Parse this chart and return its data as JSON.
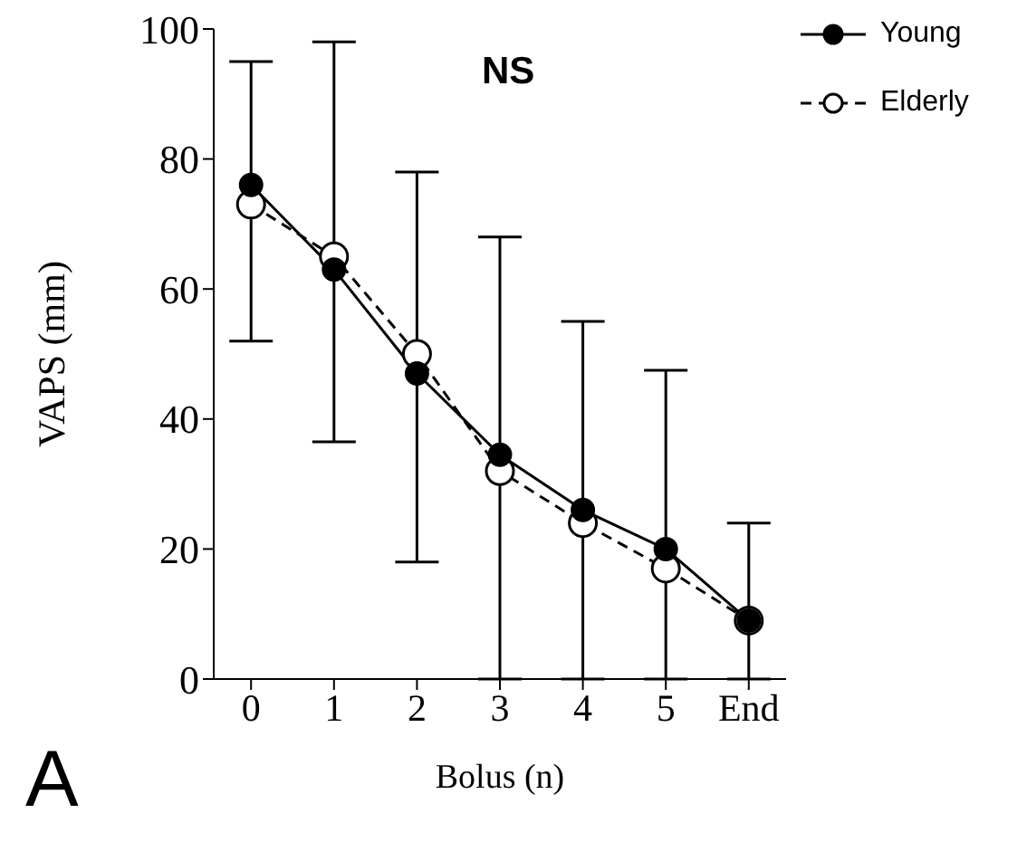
{
  "chart_data": {
    "type": "line",
    "xlabel": "Bolus (n)",
    "ylabel": "VAPS (mm)",
    "categories": [
      "0",
      "1",
      "2",
      "3",
      "4",
      "5",
      "End"
    ],
    "series": [
      {
        "name": "Young",
        "color": "#000000",
        "line_style": "solid",
        "values": [
          76,
          63,
          47,
          34.5,
          26,
          20,
          9
        ],
        "errors": [
          [
            52,
            95
          ],
          [
            36.5,
            98
          ],
          [
            18,
            78
          ],
          [
            0,
            68
          ],
          [
            0,
            55
          ],
          [
            0,
            47.5
          ],
          [
            0,
            24
          ]
        ]
      },
      {
        "name": "Elderly",
        "color": "#000000",
        "line_style": "dashed",
        "values": [
          73,
          65,
          50,
          32,
          24,
          17,
          9
        ]
      }
    ],
    "ylim": [
      0,
      100
    ],
    "yticks": [
      0,
      20,
      40,
      60,
      80,
      100
    ],
    "annotations": [
      "NS",
      "A"
    ],
    "marker": "circle",
    "grid": false,
    "legend": "top right"
  }
}
